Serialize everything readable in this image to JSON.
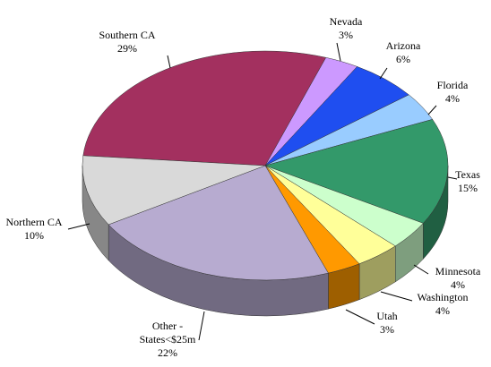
{
  "chart_data": {
    "type": "pie3d",
    "categories": [
      "Southern CA",
      "Nevada",
      "Arizona",
      "Florida",
      "Texas",
      "Minnesota",
      "Washington",
      "Utah",
      "Other - States<$25m",
      "Northern CA"
    ],
    "values": [
      29,
      3,
      6,
      4,
      15,
      4,
      4,
      3,
      22,
      10
    ],
    "value_labels": [
      "29%",
      "3%",
      "6%",
      "4%",
      "15%",
      "4%",
      "4%",
      "3%",
      "22%",
      "10%"
    ],
    "colors": [
      "#a3305f",
      "#cc99ff",
      "#1f4ef0",
      "#99ccff",
      "#33996a",
      "#ccffcc",
      "#ffff99",
      "#ff9900",
      "#b7abd0",
      "#d9d9d9"
    ]
  }
}
